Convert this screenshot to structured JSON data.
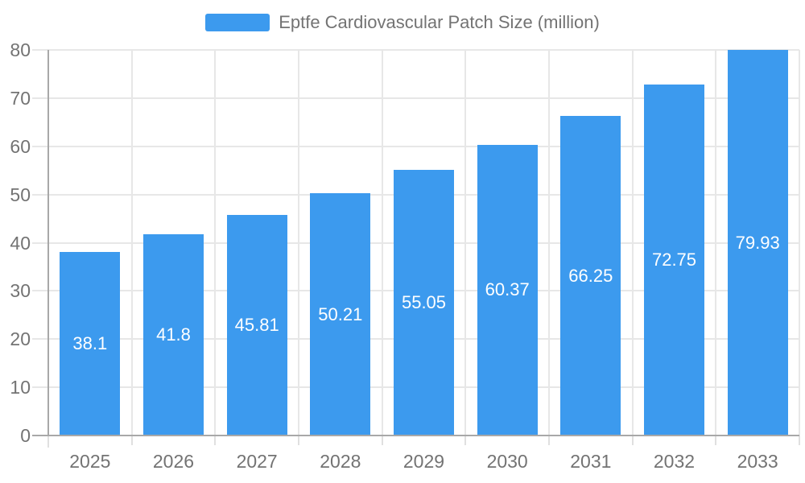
{
  "chart_data": {
    "type": "bar",
    "title": "Eptfe Cardiovascular Patch Size (million)",
    "legend_entries": [
      "Eptfe Cardiovascular Patch Size (million)"
    ],
    "legend_position": "top-center",
    "categories": [
      "2025",
      "2026",
      "2027",
      "2028",
      "2029",
      "2030",
      "2031",
      "2032",
      "2033"
    ],
    "series": [
      {
        "name": "Eptfe Cardiovascular Patch Size (million)",
        "values": [
          38.1,
          41.8,
          45.81,
          50.21,
          55.05,
          60.37,
          66.25,
          72.75,
          79.93
        ]
      }
    ],
    "value_labels": [
      "38.1",
      "41.8",
      "45.81",
      "50.21",
      "55.05",
      "60.37",
      "66.25",
      "72.75",
      "79.93"
    ],
    "xlabel": "",
    "ylabel": "",
    "ylim": [
      0,
      80
    ],
    "ytick_step": 10,
    "ytick_labels": [
      "0",
      "10",
      "20",
      "30",
      "40",
      "50",
      "60",
      "70",
      "80"
    ],
    "grid": true,
    "colors": {
      "bar": "#3C9AEE",
      "grid": "#E7E7E7",
      "tick": "#E0E0E0",
      "axis": "#A8A8A8",
      "axis_label": "#737373",
      "legend_text": "#737373",
      "value_label": "#FFFFFF",
      "background": "#FFFFFF"
    }
  }
}
